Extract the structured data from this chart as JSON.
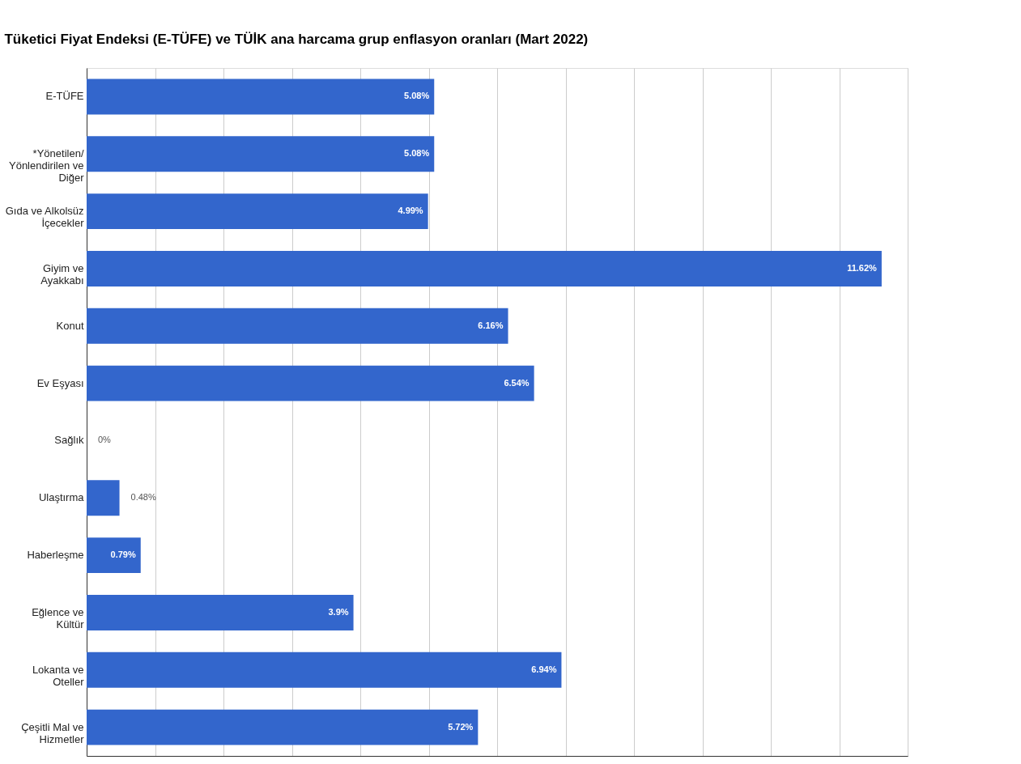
{
  "chart_data": {
    "type": "bar",
    "orientation": "horizontal",
    "title": "Tüketici Fiyat Endeksi (E-TÜFE) ve TÜİK ana harcama grup enflasyon oranları (Mart 2022)",
    "categories": [
      "E-TÜFE",
      "*Yönetilen/ Yönlendirilen ve Diğer",
      "Gıda ve Alkolsüz İçecekler",
      "Giyim ve Ayakkabı",
      "Konut",
      "Ev Eşyası",
      "Sağlık",
      "Ulaştırma",
      "Haberleşme",
      "Eğlence ve Kültür",
      "Lokanta ve Oteller",
      "Çeşitli Mal ve Hizmetler"
    ],
    "values": [
      5.08,
      5.08,
      4.99,
      11.62,
      6.16,
      6.54,
      0,
      0.48,
      0.79,
      3.9,
      6.94,
      5.72
    ],
    "value_labels": [
      "5.08%",
      "5.08%",
      "4.99%",
      "11.62%",
      "6.16%",
      "6.54%",
      "0%",
      "0.48%",
      "0.79%",
      "3.9%",
      "6.94%",
      "5.72%"
    ],
    "color": "#3366cc",
    "xlim": [
      0,
      12
    ],
    "xticks": [
      {
        "value": 0,
        "label": null
      },
      {
        "value": 1,
        "label": null
      },
      {
        "value": 2,
        "label": null
      },
      {
        "value": 3,
        "label": null
      },
      {
        "value": 4,
        "label": null
      },
      {
        "value": 5,
        "label": null
      },
      {
        "value": 6,
        "label": null
      },
      {
        "value": 7,
        "label": null
      },
      {
        "value": 8,
        "label": null
      },
      {
        "value": 9,
        "label": null
      },
      {
        "value": 10,
        "label": null
      },
      {
        "value": 11,
        "label": null
      },
      {
        "value": 12,
        "label": null
      }
    ],
    "grid": "x",
    "tick_labels": "y"
  }
}
